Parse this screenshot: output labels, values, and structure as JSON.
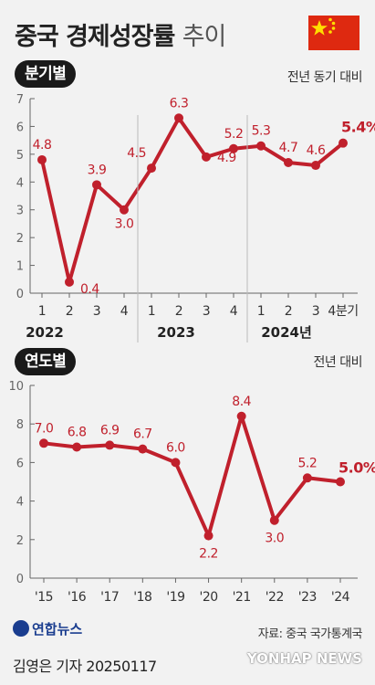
{
  "header": {
    "title_bold": "중국 경제성장률",
    "title_light": "추이"
  },
  "flag": {
    "red": "#de2910",
    "yellow": "#ffde00"
  },
  "colors": {
    "line": "#c0202c",
    "label": "#c0202c",
    "axis": "#666666",
    "grid": "#cccccc"
  },
  "chart_data": [
    {
      "type": "line",
      "tag": "분기별",
      "unit": "전년 동기 대비",
      "ylim": [
        0,
        7
      ],
      "yticks": [
        "0",
        "1",
        "2",
        "3",
        "4",
        "5",
        "6",
        "7"
      ],
      "x": [
        "1",
        "2",
        "3",
        "4",
        "1",
        "2",
        "3",
        "4",
        "1",
        "2",
        "3",
        "4분기"
      ],
      "year_labels": [
        "2022",
        "2023",
        "2024년"
      ],
      "values": [
        4.8,
        0.4,
        3.9,
        3.0,
        4.5,
        6.3,
        4.9,
        5.2,
        5.3,
        4.7,
        4.6,
        5.4
      ],
      "value_labels": [
        "4.8",
        "0.4",
        "3.9",
        "3.0",
        "4.5",
        "6.3",
        "4.9",
        "5.2",
        "5.3",
        "4.7",
        "4.6",
        "5.4%"
      ]
    },
    {
      "type": "line",
      "tag": "연도별",
      "unit": "전년 대비",
      "ylim": [
        0,
        10
      ],
      "yticks": [
        "0",
        "2",
        "4",
        "6",
        "8",
        "10"
      ],
      "x": [
        "'15",
        "'16",
        "'17",
        "'18",
        "'19",
        "'20",
        "'21",
        "'22",
        "'23",
        "'24"
      ],
      "values": [
        7.0,
        6.8,
        6.9,
        6.7,
        6.0,
        2.2,
        8.4,
        3.0,
        5.2,
        5.0
      ],
      "value_labels": [
        "7.0",
        "6.8",
        "6.9",
        "6.7",
        "6.0",
        "2.2",
        "8.4",
        "3.0",
        "5.2",
        "5.0%"
      ]
    }
  ],
  "footer": {
    "logo": "연합뉴스",
    "source": "자료: 중국 국가통계국",
    "byline": "김영은 기자  20250117",
    "watermark": "YONHAP NEWS"
  }
}
